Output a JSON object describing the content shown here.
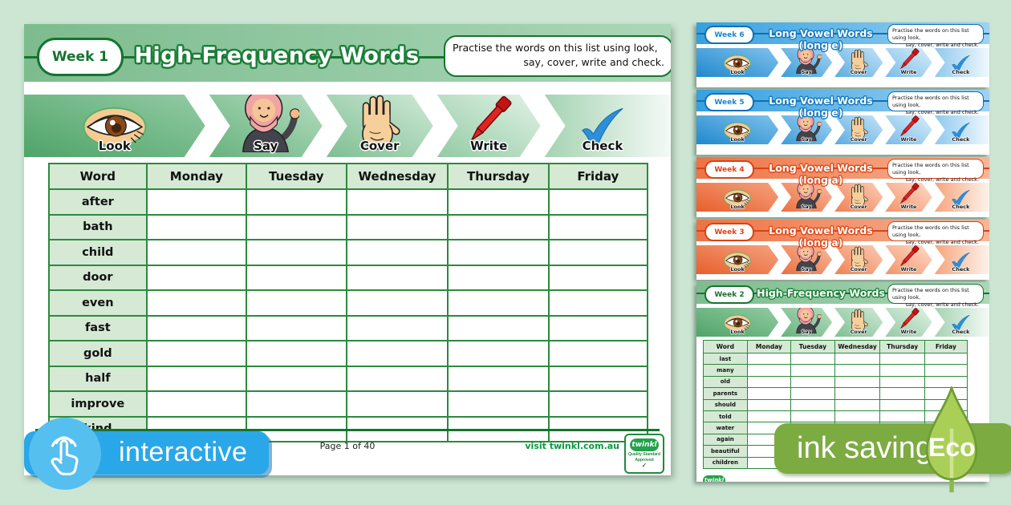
{
  "background": "#cde6d4",
  "steps": [
    {
      "label": "Look",
      "icon": "eye"
    },
    {
      "label": "Say",
      "icon": "say"
    },
    {
      "label": "Cover",
      "icon": "hand"
    },
    {
      "label": "Write",
      "icon": "pen"
    },
    {
      "label": "Check",
      "icon": "check"
    }
  ],
  "practice_note": {
    "line1": "Practise the words on this list using look,",
    "line2": "say, cover, write and check."
  },
  "main_page": {
    "week_label": "Week 1",
    "title": "High-Frequency Words",
    "table": {
      "headers": [
        "Word",
        "Monday",
        "Tuesday",
        "Wednesday",
        "Thursday",
        "Friday"
      ],
      "words": [
        "after",
        "bath",
        "child",
        "door",
        "even",
        "fast",
        "gold",
        "half",
        "improve",
        "kind"
      ]
    },
    "footer": {
      "page_label": "Page 1 of 40",
      "link": "visit twinkl.com.au",
      "logo": "twinkl",
      "logo_sub": "Quality Standard Approved"
    }
  },
  "stack_pages": [
    {
      "week_label": "Week 6",
      "title": "Long Vowel Words (long e)",
      "theme": "blue"
    },
    {
      "week_label": "Week 5",
      "title": "Long Vowel Words (long e)",
      "theme": "blue"
    },
    {
      "week_label": "Week 4",
      "title": "Long Vowel Words (long a)",
      "theme": "orange"
    },
    {
      "week_label": "Week 3",
      "title": "Long Vowel Words (long a)",
      "theme": "orange"
    },
    {
      "week_label": "Week 2",
      "title": "High-Frequency Words",
      "theme": "green",
      "table": {
        "headers": [
          "Word",
          "Monday",
          "Tuesday",
          "Wednesday",
          "Thursday",
          "Friday"
        ],
        "words": [
          "last",
          "many",
          "old",
          "parents",
          "should",
          "told",
          "water",
          "again",
          "beautiful",
          "children"
        ]
      },
      "logo": "twinkl"
    }
  ],
  "badges": {
    "interactive": "interactive",
    "ink_saving": "ink saving",
    "eco": "Eco"
  },
  "colors": {
    "green_dark": "#15742f",
    "blue_dark": "#1070b4",
    "orange_dark": "#d84316",
    "interactive_blue": "#2aa7e9",
    "eco_green": "#7cab41",
    "leaf_green": "#a9cf56"
  }
}
